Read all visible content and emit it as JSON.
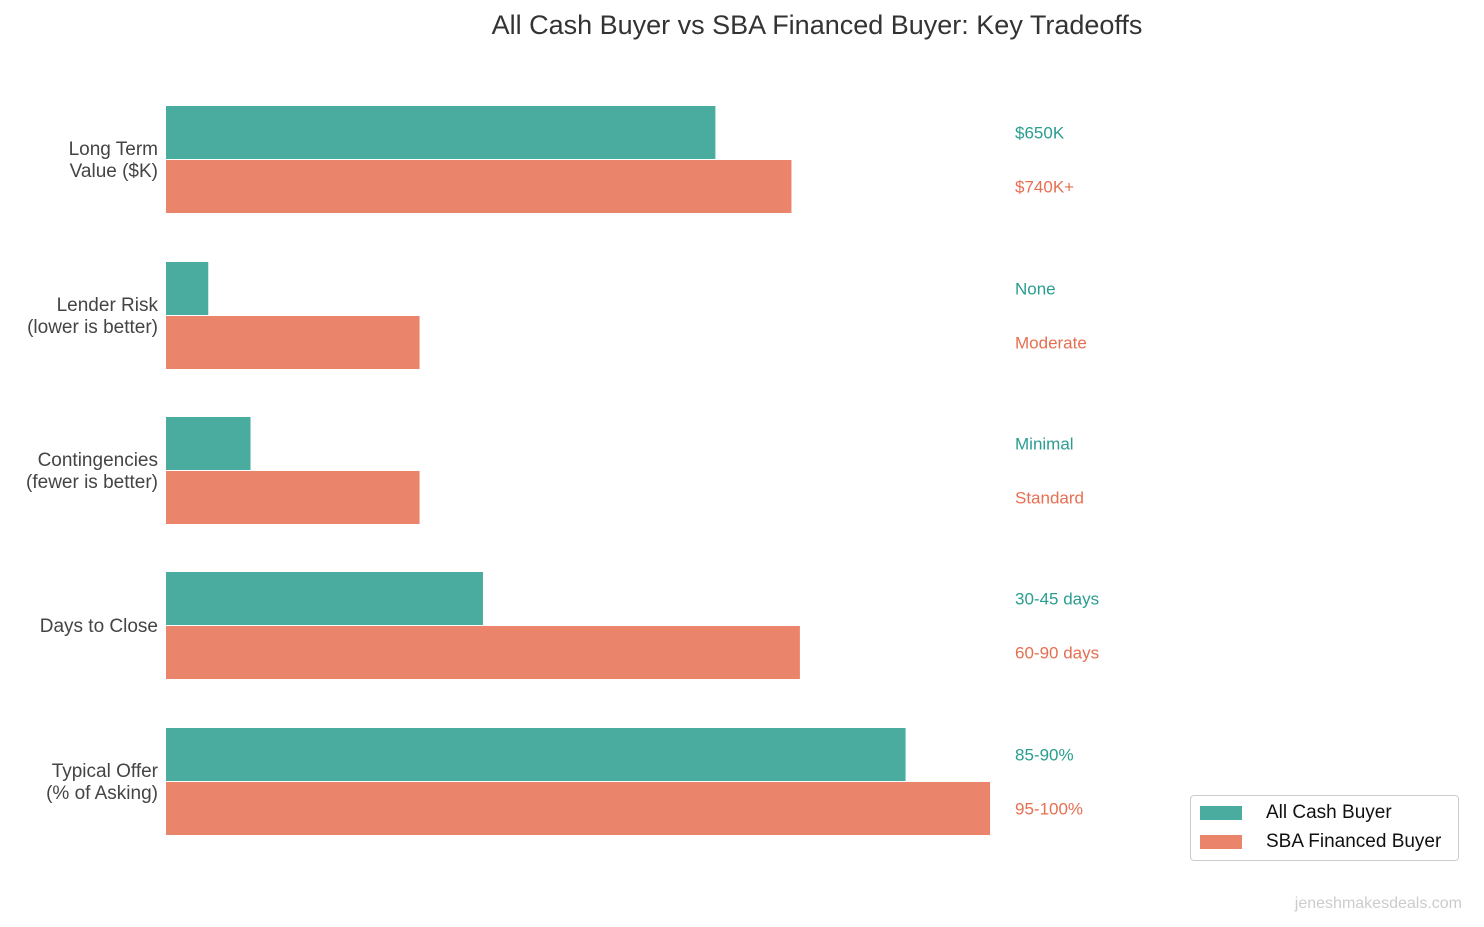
{
  "chart_data": {
    "type": "bar",
    "orientation": "horizontal",
    "title": "All Cash Buyer vs SBA Financed Buyer: Key Tradeoffs",
    "categories": [
      "Long Term\nValue ($K)",
      "Lender Risk\n(lower is better)",
      "Contingencies\n(fewer is better)",
      "Days to Close",
      "Typical Offer\n(% of Asking)"
    ],
    "series": [
      {
        "name": "All Cash Buyer",
        "color": "#4aab9f",
        "label_color": "#2a9d8f",
        "values": [
          65,
          5,
          10,
          37.5,
          87.5
        ],
        "labels": [
          "$650K",
          "None",
          "Minimal",
          "30-45 days",
          "85-90%"
        ]
      },
      {
        "name": "SBA Financed Buyer",
        "color": "#ea856c",
        "label_color": "#e76f51",
        "values": [
          74,
          30,
          30,
          75,
          97.5
        ],
        "labels": [
          "$740K+",
          "Moderate",
          "Standard",
          "60-90 days",
          "95-100%"
        ]
      }
    ],
    "xlim": [
      0,
      115
    ],
    "grid": false,
    "legend_position": "bottom-right"
  },
  "watermark": "jeneshmakesdeals.com"
}
